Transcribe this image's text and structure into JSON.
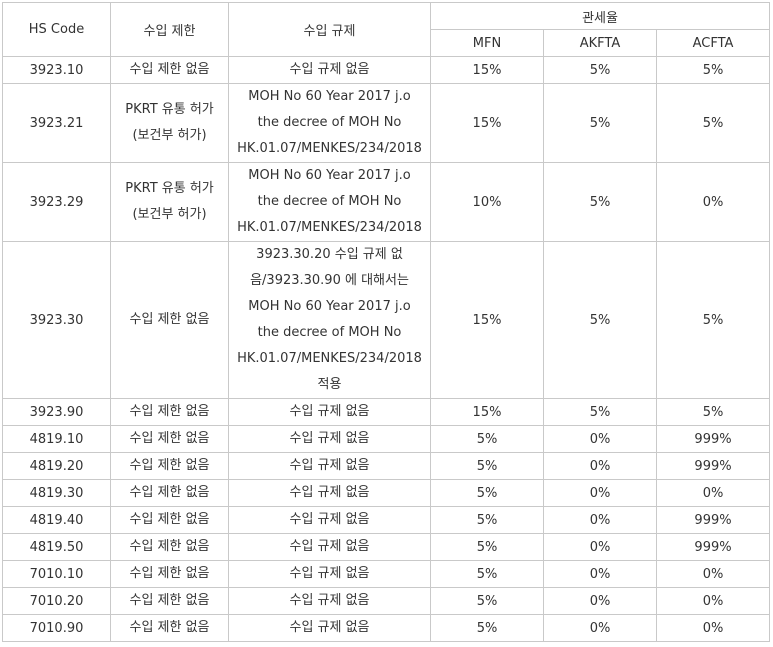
{
  "headers": {
    "hs_code": "HS Code",
    "import_restriction": "수입 제한",
    "import_regulation": "수입 규제",
    "tariff": "관세율",
    "mfn": "MFN",
    "akfta": "AKFTA",
    "acfta": "ACFTA"
  },
  "rows": [
    {
      "hs": "3923.10",
      "restriction": [
        "수입 제한 없음"
      ],
      "regulation": [
        "수입 규제 없음"
      ],
      "mfn": "15%",
      "akfta": "5%",
      "acfta": "5%"
    },
    {
      "hs": "3923.21",
      "restriction": [
        "PKRT 유통 허가",
        "(보건부 허가)"
      ],
      "regulation": [
        "MOH No 60 Year 2017 j.o",
        "the decree of MOH No",
        "HK.01.07/MENKES/234/2018"
      ],
      "mfn": "15%",
      "akfta": "5%",
      "acfta": "5%"
    },
    {
      "hs": "3923.29",
      "restriction": [
        "PKRT 유통 허가",
        "(보건부 허가)"
      ],
      "regulation": [
        "MOH No 60 Year 2017 j.o",
        "the decree of MOH No",
        "HK.01.07/MENKES/234/2018"
      ],
      "mfn": "10%",
      "akfta": "5%",
      "acfta": "0%"
    },
    {
      "hs": "3923.30",
      "restriction": [
        "수입 제한 없음"
      ],
      "regulation": [
        "3923.30.20 수입 규제 없",
        "음/3923.30.90 에 대해서는",
        "MOH No 60 Year 2017 j.o",
        "the decree of MOH No",
        "HK.01.07/MENKES/234/2018",
        "적용"
      ],
      "mfn": "15%",
      "akfta": "5%",
      "acfta": "5%"
    },
    {
      "hs": "3923.90",
      "restriction": [
        "수입 제한 없음"
      ],
      "regulation": [
        "수입 규제 없음"
      ],
      "mfn": "15%",
      "akfta": "5%",
      "acfta": "5%"
    },
    {
      "hs": "4819.10",
      "restriction": [
        "수입 제한 없음"
      ],
      "regulation": [
        "수입 규제 없음"
      ],
      "mfn": "5%",
      "akfta": "0%",
      "acfta": "999%"
    },
    {
      "hs": "4819.20",
      "restriction": [
        "수입 제한 없음"
      ],
      "regulation": [
        "수입 규제 없음"
      ],
      "mfn": "5%",
      "akfta": "0%",
      "acfta": "999%"
    },
    {
      "hs": "4819.30",
      "restriction": [
        "수입 제한 없음"
      ],
      "regulation": [
        "수입 규제 없음"
      ],
      "mfn": "5%",
      "akfta": "0%",
      "acfta": "0%"
    },
    {
      "hs": "4819.40",
      "restriction": [
        "수입 제한 없음"
      ],
      "regulation": [
        "수입 규제 없음"
      ],
      "mfn": "5%",
      "akfta": "0%",
      "acfta": "999%"
    },
    {
      "hs": "4819.50",
      "restriction": [
        "수입 제한 없음"
      ],
      "regulation": [
        "수입 규제 없음"
      ],
      "mfn": "5%",
      "akfta": "0%",
      "acfta": "999%"
    },
    {
      "hs": "7010.10",
      "restriction": [
        "수입 제한 없음"
      ],
      "regulation": [
        "수입 규제 없음"
      ],
      "mfn": "5%",
      "akfta": "0%",
      "acfta": "0%"
    },
    {
      "hs": "7010.20",
      "restriction": [
        "수입 제한 없음"
      ],
      "regulation": [
        "수입 규제 없음"
      ],
      "mfn": "5%",
      "akfta": "0%",
      "acfta": "0%"
    },
    {
      "hs": "7010.90",
      "restriction": [
        "수입 제한 없음"
      ],
      "regulation": [
        "수입 규제 없음"
      ],
      "mfn": "5%",
      "akfta": "0%",
      "acfta": "0%"
    }
  ]
}
